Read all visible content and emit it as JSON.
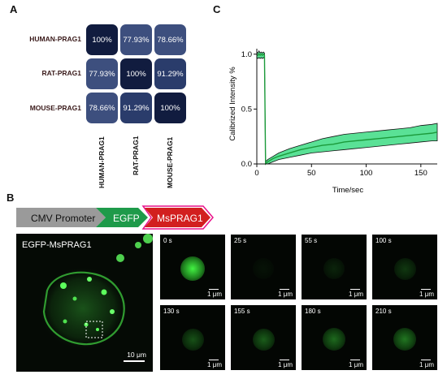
{
  "panels": {
    "a": "A",
    "b": "B",
    "c": "C"
  },
  "panel_a": {
    "rows": [
      "HUMAN-PRAG1",
      "RAT-PRAG1",
      "MOUSE-PRAG1"
    ],
    "cols": [
      "HUMAN-PRAG1",
      "RAT-PRAG1",
      "MOUSE-PRAG1"
    ],
    "matrix": [
      [
        "100%",
        "77.93%",
        "78.66%"
      ],
      [
        "77.93%",
        "100%",
        "91.29%"
      ],
      [
        "78.66%",
        "91.29%",
        "100%"
      ]
    ],
    "colors": {
      "high": "#111c3f",
      "mid": "#2a3c6b",
      "low": "#3d4f7e"
    }
  },
  "chart_data": {
    "type": "area",
    "xlabel": "Time/sec",
    "ylabel": "Calibrized Intensity %",
    "xlim": [
      0,
      165
    ],
    "ylim": [
      0,
      1.05
    ],
    "xticks": [
      "0",
      "50",
      "100",
      "150"
    ],
    "yticks": [
      "0.0",
      "0.5",
      "1.0"
    ],
    "series": [
      {
        "x": [
          0,
          1,
          2,
          3,
          4,
          5,
          6,
          7,
          8,
          9,
          10,
          15,
          20,
          30,
          40,
          50,
          60,
          70,
          80,
          90,
          100,
          110,
          120,
          130,
          140,
          150,
          160,
          165
        ],
        "mean": [
          1.0,
          0.99,
          1.0,
          0.99,
          1.0,
          0.99,
          1.0,
          0.99,
          0.0,
          0.01,
          0.02,
          0.05,
          0.07,
          0.1,
          0.13,
          0.15,
          0.17,
          0.18,
          0.2,
          0.21,
          0.22,
          0.23,
          0.24,
          0.25,
          0.26,
          0.27,
          0.28,
          0.29
        ],
        "upper": [
          1.02,
          1.01,
          1.03,
          1.01,
          1.02,
          1.01,
          1.02,
          1.01,
          0.02,
          0.03,
          0.04,
          0.07,
          0.1,
          0.14,
          0.17,
          0.2,
          0.23,
          0.25,
          0.27,
          0.28,
          0.29,
          0.3,
          0.31,
          0.32,
          0.33,
          0.35,
          0.36,
          0.37
        ],
        "lower": [
          0.97,
          0.96,
          0.97,
          0.96,
          0.97,
          0.96,
          0.97,
          0.96,
          0.0,
          0.0,
          0.0,
          0.02,
          0.04,
          0.06,
          0.08,
          0.1,
          0.11,
          0.12,
          0.13,
          0.14,
          0.15,
          0.16,
          0.17,
          0.18,
          0.19,
          0.2,
          0.21,
          0.21
        ]
      }
    ],
    "colors": {
      "line": "#1b9a3a",
      "band": "#3ddc84"
    }
  },
  "panel_b": {
    "construct": {
      "promoter": "CMV Promoter",
      "tag": "EGFP",
      "gene": "MsPRAG1"
    },
    "construct_colors": {
      "promoter": "#9a9a9a",
      "tag": "#1e9a4a",
      "gene": "#d21f1f",
      "outline": "#e9128b"
    },
    "main_image": {
      "label": "EGFP-MsPRAG1",
      "scale": "10 μm"
    },
    "tiles": [
      {
        "time": "0 s",
        "scale": "1 μm",
        "intensity": 0.95
      },
      {
        "time": "25 s",
        "scale": "1 μm",
        "intensity": 0.05
      },
      {
        "time": "55 s",
        "scale": "1 μm",
        "intensity": 0.12
      },
      {
        "time": "100 s",
        "scale": "1 μm",
        "intensity": 0.2
      },
      {
        "time": "130 s",
        "scale": "1 μm",
        "intensity": 0.3
      },
      {
        "time": "155 s",
        "scale": "1 μm",
        "intensity": 0.35
      },
      {
        "time": "180 s",
        "scale": "1 μm",
        "intensity": 0.4
      },
      {
        "time": "210 s",
        "scale": "1 μm",
        "intensity": 0.45
      }
    ]
  }
}
